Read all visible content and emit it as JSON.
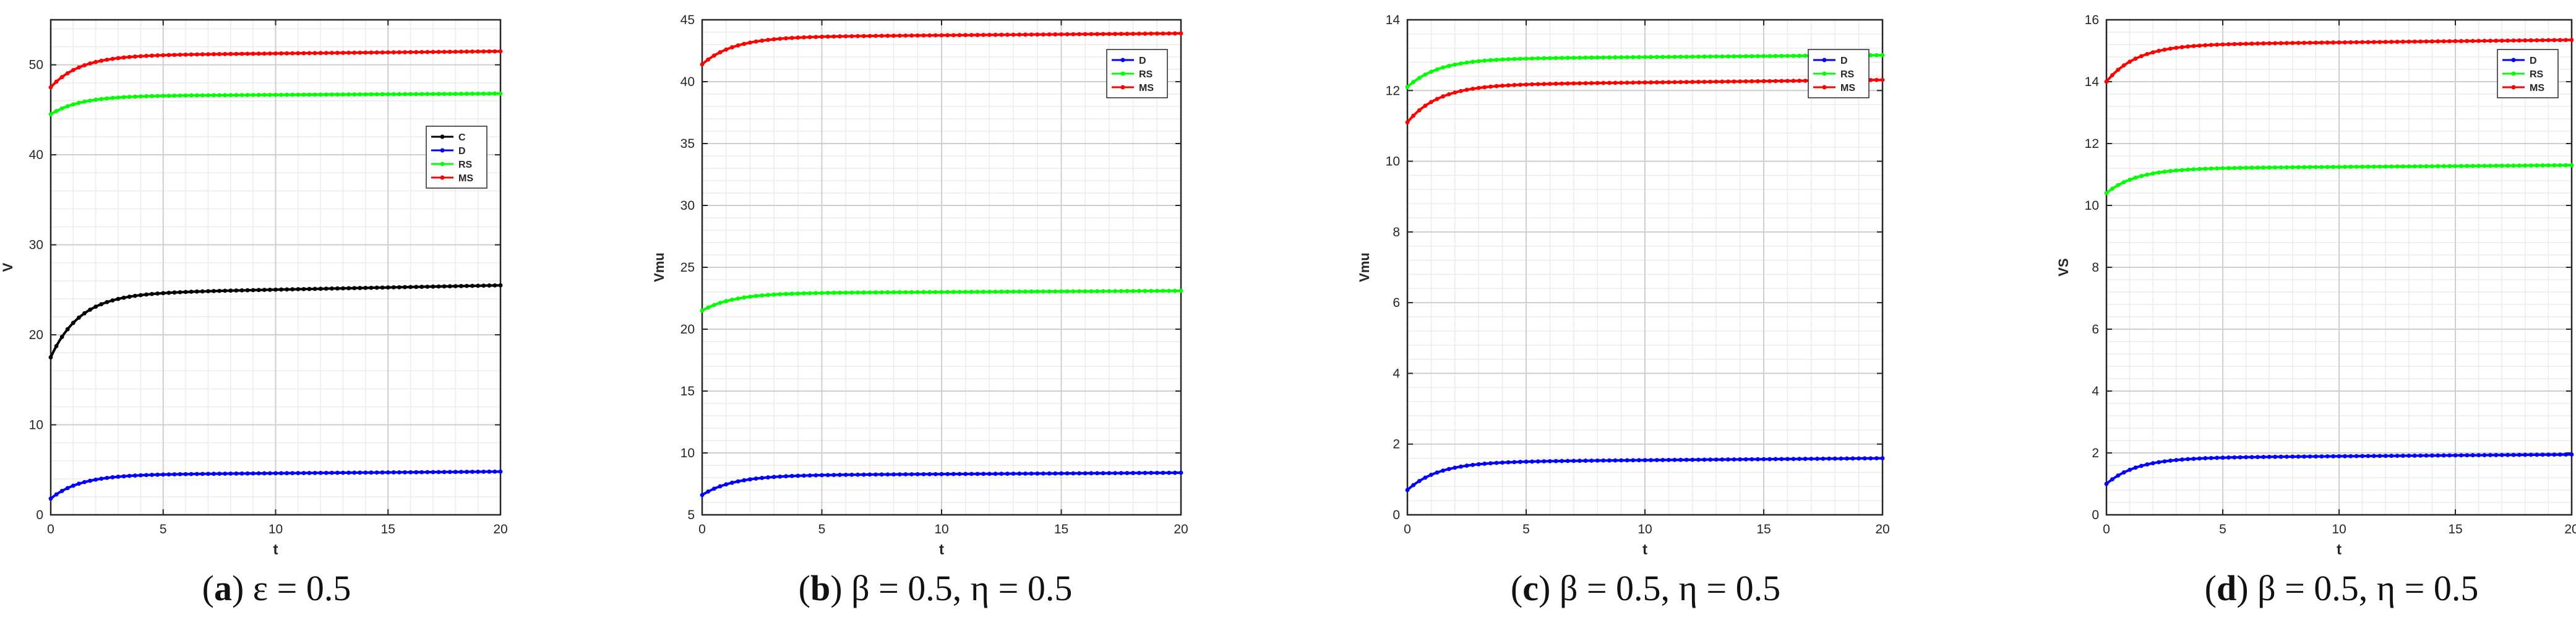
{
  "chart_data": [
    {
      "type": "line",
      "caption_letter": "a",
      "caption_rest": " ε = 0.5",
      "xlabel": "t",
      "ylabel": "V",
      "xlim": [
        0,
        20
      ],
      "ylim": [
        0,
        55
      ],
      "xticks": [
        0,
        5,
        10,
        15,
        20
      ],
      "yticks": [
        0,
        10,
        20,
        30,
        40,
        50
      ],
      "grid": true,
      "legend_position": "upper-right",
      "series": [
        {
          "name": "C",
          "color": "#000000",
          "start": 17.5,
          "end": 25.5
        },
        {
          "name": "D",
          "color": "#0000ff",
          "start": 1.8,
          "end": 4.8
        },
        {
          "name": "RS",
          "color": "#00ff00",
          "start": 44.5,
          "end": 46.8
        },
        {
          "name": "MS",
          "color": "#ff0000",
          "start": 47.5,
          "end": 51.5
        }
      ]
    },
    {
      "type": "line",
      "caption_letter": "b",
      "caption_rest": " β = 0.5, η = 0.5",
      "xlabel": "t",
      "ylabel": "Vmu",
      "xlim": [
        0,
        20
      ],
      "ylim": [
        5,
        45
      ],
      "xticks": [
        0,
        5,
        10,
        15,
        20
      ],
      "yticks": [
        5,
        10,
        15,
        20,
        25,
        30,
        35,
        40,
        45
      ],
      "grid": true,
      "legend_position": "upper-right",
      "series": [
        {
          "name": "D",
          "color": "#0000ff",
          "start": 6.6,
          "end": 8.4
        },
        {
          "name": "RS",
          "color": "#00ff00",
          "start": 21.5,
          "end": 23.1
        },
        {
          "name": "MS",
          "color": "#ff0000",
          "start": 41.4,
          "end": 43.9
        }
      ]
    },
    {
      "type": "line",
      "caption_letter": "c",
      "caption_rest": " β = 0.5, η = 0.5",
      "xlabel": "t",
      "ylabel": "Vmu",
      "xlim": [
        0,
        20
      ],
      "ylim": [
        0,
        14
      ],
      "xticks": [
        0,
        5,
        10,
        15,
        20
      ],
      "yticks": [
        0,
        2,
        4,
        6,
        8,
        10,
        12,
        14
      ],
      "grid": true,
      "legend_position": "upper-right",
      "series": [
        {
          "name": "D",
          "color": "#0000ff",
          "start": 0.7,
          "end": 1.6
        },
        {
          "name": "RS",
          "color": "#00ff00",
          "start": 12.1,
          "end": 13.0
        },
        {
          "name": "MS",
          "color": "#ff0000",
          "start": 11.1,
          "end": 12.3
        }
      ]
    },
    {
      "type": "line",
      "caption_letter": "d",
      "caption_rest": " β = 0.5, η = 0.5",
      "xlabel": "t",
      "ylabel": "VS",
      "xlim": [
        0,
        20
      ],
      "ylim": [
        0,
        16
      ],
      "xticks": [
        0,
        5,
        10,
        15,
        20
      ],
      "yticks": [
        0,
        2,
        4,
        6,
        8,
        10,
        12,
        14,
        16
      ],
      "grid": true,
      "legend_position": "upper-right",
      "series": [
        {
          "name": "D",
          "color": "#0000ff",
          "start": 1.0,
          "end": 1.95
        },
        {
          "name": "RS",
          "color": "#00ff00",
          "start": 10.4,
          "end": 11.3
        },
        {
          "name": "MS",
          "color": "#ff0000",
          "start": 14.0,
          "end": 15.35
        }
      ]
    }
  ]
}
